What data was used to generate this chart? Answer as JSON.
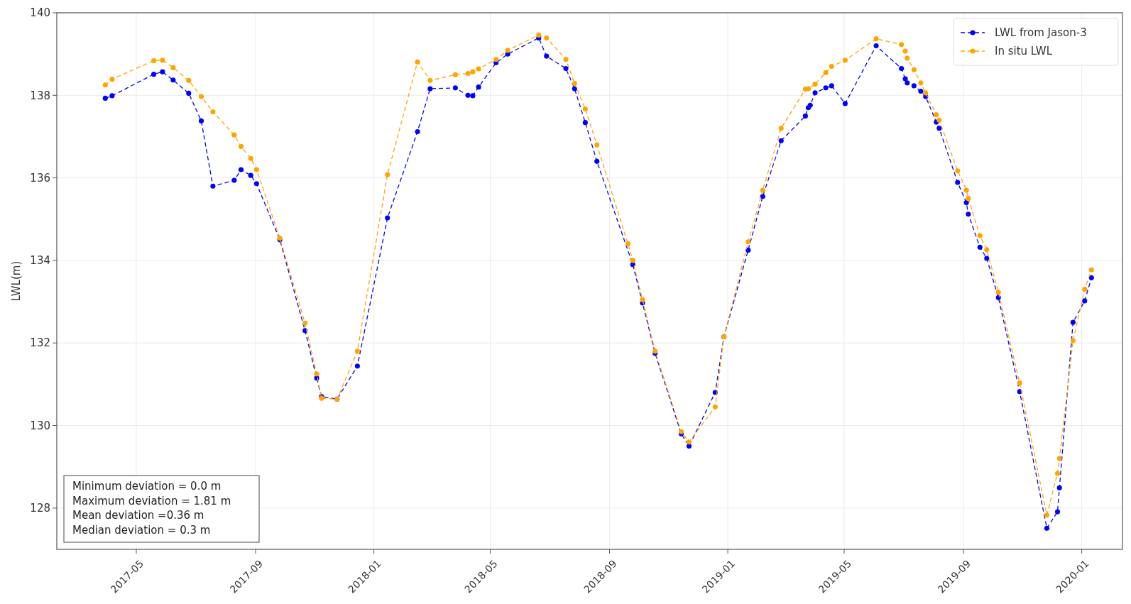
{
  "chart_data": {
    "type": "line",
    "ylabel": "LWL(m)",
    "xlim": [
      "2017-02-08",
      "2020-02-12"
    ],
    "xticks": [
      "2017-05",
      "2017-09",
      "2018-01",
      "2018-05",
      "2018-09",
      "2019-01",
      "2019-05",
      "2019-09",
      "2020-01"
    ],
    "ylim": [
      127,
      140
    ],
    "yticks": [
      128,
      130,
      132,
      134,
      136,
      138,
      140
    ],
    "grid": true,
    "legend": "top right",
    "marker": "circle",
    "line_style": "dashed",
    "annotations": [
      "Minimum deviation = 0.0 m",
      "Maximum deviation = 1.81 m",
      "Mean deviation =0.36 m",
      "Median deviation = 0.3 m"
    ],
    "series": [
      {
        "name": "LWL from Jason-3",
        "color": "#0000ff",
        "x": [
          "2017-03-30",
          "2017-04-06",
          "2017-05-19",
          "2017-05-28",
          "2017-06-08",
          "2017-06-24",
          "2017-07-07",
          "2017-07-19",
          "2017-08-10",
          "2017-08-17",
          "2017-08-27",
          "2017-09-02",
          "2017-09-26",
          "2017-10-22",
          "2017-11-03",
          "2017-11-08",
          "2017-11-24",
          "2017-12-15",
          "2018-01-15",
          "2018-02-15",
          "2018-02-28",
          "2018-03-26",
          "2018-04-08",
          "2018-04-13",
          "2018-04-19",
          "2018-05-07",
          "2018-05-19",
          "2018-06-20",
          "2018-06-28",
          "2018-07-18",
          "2018-07-27",
          "2018-08-07",
          "2018-08-19",
          "2018-09-25",
          "2018-10-05",
          "2018-10-18",
          "2018-11-14",
          "2018-11-22",
          "2018-12-19",
          "2018-12-28",
          "2019-01-22",
          "2019-02-06",
          "2019-02-25",
          "2019-03-22",
          "2019-03-25",
          "2019-03-27",
          "2019-04-01",
          "2019-04-12",
          "2019-04-18",
          "2019-05-02",
          "2019-06-03",
          "2019-06-29",
          "2019-07-03",
          "2019-07-05",
          "2019-07-12",
          "2019-07-19",
          "2019-07-24",
          "2019-08-04",
          "2019-08-07",
          "2019-08-26",
          "2019-09-04",
          "2019-09-06",
          "2019-09-18",
          "2019-09-25",
          "2019-10-07",
          "2019-10-29",
          "2019-11-26",
          "2019-12-07",
          "2019-12-09",
          "2019-12-23",
          "2020-01-04",
          "2020-01-11"
        ],
        "values": [
          137.93,
          137.99,
          138.51,
          138.57,
          138.37,
          138.05,
          137.38,
          135.8,
          135.94,
          136.2,
          136.06,
          135.86,
          134.5,
          132.3,
          131.15,
          130.7,
          130.64,
          131.44,
          135.03,
          137.12,
          138.16,
          138.18,
          138.0,
          137.99,
          138.2,
          138.79,
          139.0,
          139.39,
          138.95,
          138.65,
          138.16,
          137.34,
          136.4,
          133.9,
          132.97,
          131.75,
          129.8,
          129.5,
          130.8,
          132.15,
          134.25,
          135.55,
          136.9,
          137.5,
          137.7,
          137.76,
          138.06,
          138.18,
          138.23,
          137.8,
          139.2,
          138.65,
          138.4,
          138.3,
          138.23,
          138.1,
          137.97,
          137.35,
          137.2,
          135.89,
          135.4,
          135.12,
          134.32,
          134.05,
          133.1,
          130.82,
          127.51,
          127.91,
          128.49,
          132.5,
          133.02,
          133.58
        ]
      },
      {
        "name": "In situ LWL",
        "color": "#ffa500",
        "x": [
          "2017-03-30",
          "2017-04-06",
          "2017-05-19",
          "2017-05-28",
          "2017-06-08",
          "2017-06-24",
          "2017-07-07",
          "2017-07-19",
          "2017-08-10",
          "2017-08-17",
          "2017-08-27",
          "2017-09-02",
          "2017-09-26",
          "2017-10-22",
          "2017-11-03",
          "2017-11-08",
          "2017-11-24",
          "2017-12-15",
          "2018-01-15",
          "2018-02-15",
          "2018-02-28",
          "2018-03-26",
          "2018-04-08",
          "2018-04-13",
          "2018-04-19",
          "2018-05-07",
          "2018-05-19",
          "2018-06-20",
          "2018-06-28",
          "2018-07-18",
          "2018-07-27",
          "2018-08-07",
          "2018-08-19",
          "2018-09-20",
          "2018-09-25",
          "2018-10-05",
          "2018-10-18",
          "2018-11-14",
          "2018-11-22",
          "2018-12-19",
          "2018-12-28",
          "2019-01-22",
          "2019-02-06",
          "2019-02-25",
          "2019-03-22",
          "2019-03-25",
          "2019-04-01",
          "2019-04-12",
          "2019-04-18",
          "2019-05-02",
          "2019-06-03",
          "2019-06-29",
          "2019-07-03",
          "2019-07-05",
          "2019-07-12",
          "2019-07-19",
          "2019-07-24",
          "2019-08-04",
          "2019-08-07",
          "2019-08-26",
          "2019-09-04",
          "2019-09-06",
          "2019-09-18",
          "2019-09-25",
          "2019-10-07",
          "2019-10-29",
          "2019-11-26",
          "2019-12-07",
          "2019-12-09",
          "2019-12-23",
          "2020-01-04",
          "2020-01-11"
        ],
        "values": [
          138.25,
          138.39,
          138.84,
          138.85,
          138.67,
          138.36,
          137.97,
          137.6,
          137.04,
          136.76,
          136.47,
          136.2,
          134.54,
          132.48,
          131.25,
          130.66,
          130.64,
          131.8,
          136.08,
          138.81,
          138.36,
          138.5,
          138.53,
          138.57,
          138.64,
          138.87,
          139.09,
          139.46,
          139.39,
          138.87,
          138.29,
          137.67,
          136.8,
          134.4,
          134.0,
          133.05,
          131.8,
          129.85,
          129.6,
          130.45,
          132.15,
          134.45,
          135.7,
          137.2,
          138.15,
          138.16,
          138.27,
          138.55,
          138.7,
          138.85,
          139.37,
          139.23,
          139.07,
          138.9,
          138.62,
          138.3,
          138.06,
          137.53,
          137.4,
          136.17,
          135.7,
          135.5,
          134.6,
          134.26,
          133.23,
          131.03,
          127.83,
          128.84,
          129.2,
          132.06,
          133.3,
          133.77
        ]
      }
    ]
  }
}
